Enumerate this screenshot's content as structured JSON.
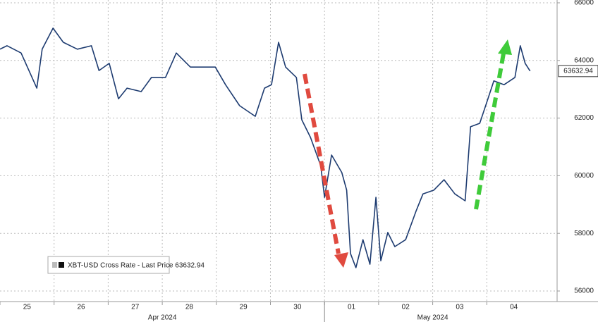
{
  "chart_data": {
    "type": "line",
    "x": [
      0,
      0.13,
      0.39,
      0.68,
      0.78,
      0.98,
      1.17,
      1.43,
      1.69,
      1.83,
      2.02,
      2.19,
      2.35,
      2.61,
      2.8,
      3.06,
      3.26,
      3.52,
      3.78,
      3.98,
      4.17,
      4.43,
      4.72,
      4.89,
      5.02,
      5.15,
      5.28,
      5.48,
      5.58,
      5.74,
      5.93,
      6.0,
      6.13,
      6.32,
      6.41,
      6.48,
      6.58,
      6.71,
      6.84,
      6.95,
      7.04,
      7.17,
      7.3,
      7.5,
      7.69,
      7.82,
      8.02,
      8.21,
      8.41,
      8.6,
      8.7,
      8.87,
      9.0,
      9.13,
      9.32,
      9.52,
      9.62,
      9.71,
      9.8
    ],
    "series": [
      {
        "name": "XBT-USD Cross Rate - Last Price 63632.94",
        "color": "#1d3b70",
        "values": [
          64390,
          64510,
          64260,
          63040,
          64390,
          65120,
          64630,
          64390,
          64510,
          63650,
          63900,
          62670,
          63040,
          62920,
          63410,
          63410,
          64260,
          63770,
          63770,
          63770,
          63160,
          62430,
          62060,
          63040,
          63160,
          64630,
          63770,
          63410,
          61940,
          61330,
          60350,
          59250,
          60720,
          60110,
          59500,
          57300,
          56810,
          57780,
          56930,
          59250,
          57050,
          58030,
          57540,
          57780,
          58760,
          59370,
          59500,
          59860,
          59370,
          59130,
          61700,
          61820,
          62550,
          63290,
          63160,
          63410,
          64510,
          63900,
          63632.94
        ]
      }
    ],
    "xlim": [
      0,
      10.3
    ],
    "xticks": [
      {
        "value": 0,
        "label": "25"
      },
      {
        "value": 1,
        "label": "26"
      },
      {
        "value": 2,
        "label": "27"
      },
      {
        "value": 3,
        "label": "28"
      },
      {
        "value": 4,
        "label": "29"
      },
      {
        "value": 5,
        "label": "30"
      },
      {
        "value": 6,
        "label": "01"
      },
      {
        "value": 7,
        "label": "02"
      },
      {
        "value": 8,
        "label": "03"
      },
      {
        "value": 9,
        "label": "04"
      }
    ],
    "month_ticks": [
      {
        "value": 3,
        "label": "Apr 2024"
      },
      {
        "value": 8,
        "label": "May 2024"
      }
    ],
    "ylim": [
      56000,
      66000
    ],
    "yticks": [
      56000,
      58000,
      60000,
      62000,
      64000,
      66000
    ],
    "grid": true
  }
}
